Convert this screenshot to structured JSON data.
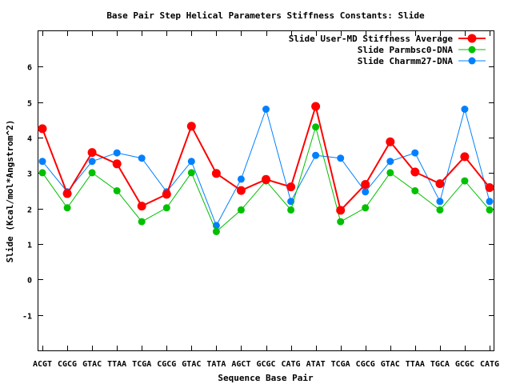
{
  "chart_data": {
    "type": "line",
    "title": "Base Pair Step Helical Parameters Stiffness Constants: Slide",
    "xlabel": "Sequence Base Pair",
    "ylabel": "Slide (Kcal/mol*Angstrom^2)",
    "ylim": [
      -2,
      7
    ],
    "yticks": [
      -1,
      0,
      1,
      2,
      3,
      4,
      5,
      6
    ],
    "grid": false,
    "legend_position": "top-right",
    "categories": [
      "ACGT",
      "CGCG",
      "GTAC",
      "TTAA",
      "TCGA",
      "CGCG",
      "GTAC",
      "TATA",
      "AGCT",
      "GCGC",
      "CATG",
      "ATAT",
      "TCGA",
      "CGCG",
      "GTAC",
      "TTAA",
      "TGCA",
      "GCGC",
      "CATG"
    ],
    "series": [
      {
        "name": "Slide User-MD Stiffness Average",
        "color": "#ff0000",
        "values": [
          4.25,
          2.42,
          3.58,
          3.26,
          2.07,
          2.4,
          4.32,
          2.99,
          2.51,
          2.82,
          2.61,
          4.88,
          1.95,
          2.68,
          3.88,
          3.03,
          2.7,
          3.46,
          2.59
        ]
      },
      {
        "name": "Slide Parmbsc0-DNA",
        "color": "#00c000",
        "values": [
          3.01,
          2.02,
          3.01,
          2.5,
          1.63,
          2.02,
          3.01,
          1.35,
          1.96,
          2.78,
          1.96,
          4.3,
          1.63,
          2.02,
          3.01,
          2.5,
          1.96,
          2.78,
          1.96
        ]
      },
      {
        "name": "Slide Charmm27-DNA",
        "color": "#0080ff",
        "values": [
          3.33,
          2.47,
          3.33,
          3.57,
          3.42,
          2.47,
          3.33,
          1.52,
          2.83,
          4.8,
          2.2,
          3.5,
          3.42,
          2.47,
          3.33,
          3.57,
          2.2,
          4.8,
          2.2
        ]
      }
    ]
  }
}
